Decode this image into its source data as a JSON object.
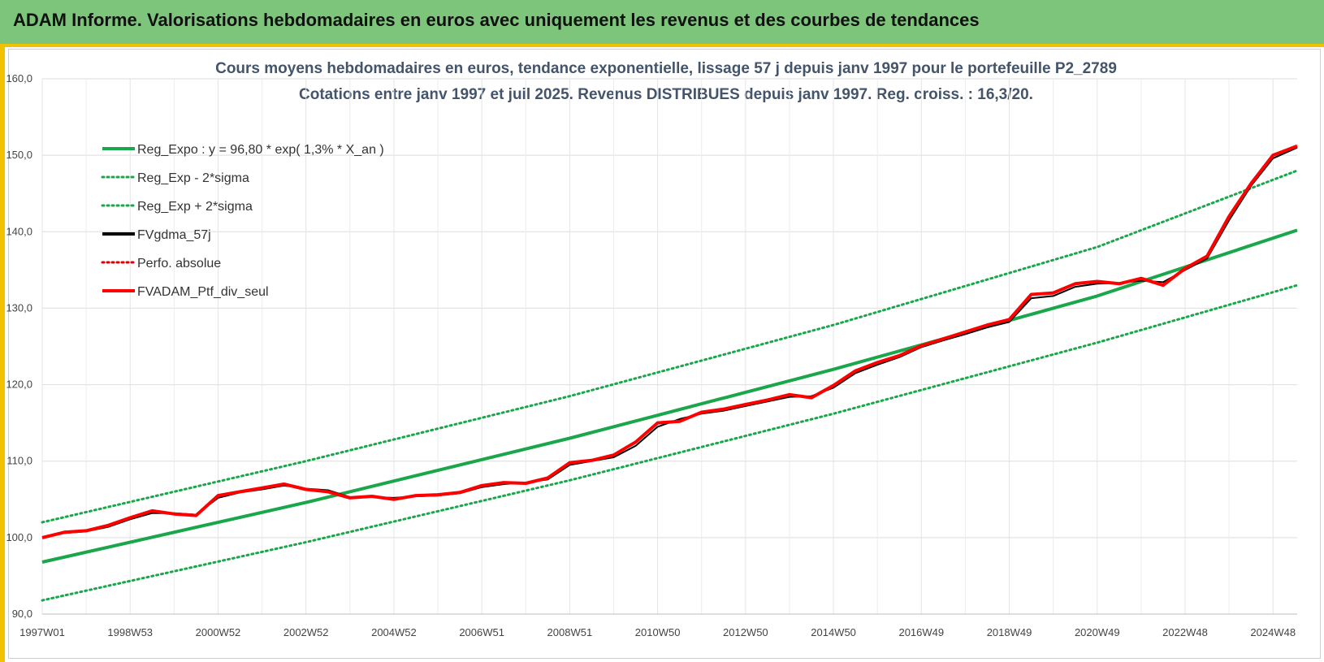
{
  "header": {
    "title": "ADAM Informe. Valorisations hebdomadaires en euros avec uniquement les revenus et des courbes de tendances"
  },
  "chart_data": {
    "type": "line",
    "title": "Cours moyens hebdomadaires  en euros, tendance exponentielle, lissage 57 j depuis janv 1997 pour le portefeuille P2_2789",
    "subtitle": "Cotations  entre janv 1997 et juil 2025. Revenus DISTRIBUES depuis janv 1997. Reg. croiss. : 16,3/20.",
    "ylim": [
      90,
      160
    ],
    "xlim": [
      1997.0,
      2025.55
    ],
    "y_ticks": [
      "90,0",
      "100,0",
      "110,0",
      "120,0",
      "130,0",
      "140,0",
      "150,0",
      "160,0"
    ],
    "x_ticks": [
      {
        "label": "1997W01",
        "x": 1997.0
      },
      {
        "label": "1998W53",
        "x": 1999.0
      },
      {
        "label": "2000W52",
        "x": 2001.0
      },
      {
        "label": "2002W52",
        "x": 2003.0
      },
      {
        "label": "2004W52",
        "x": 2005.0
      },
      {
        "label": "2006W51",
        "x": 2007.0
      },
      {
        "label": "2008W51",
        "x": 2009.0
      },
      {
        "label": "2010W50",
        "x": 2011.0
      },
      {
        "label": "2012W50",
        "x": 2013.0
      },
      {
        "label": "2014W50",
        "x": 2015.0
      },
      {
        "label": "2016W49",
        "x": 2017.0
      },
      {
        "label": "2018W49",
        "x": 2019.0
      },
      {
        "label": "2020W49",
        "x": 2021.0
      },
      {
        "label": "2022W48",
        "x": 2023.0
      },
      {
        "label": "2024W48",
        "x": 2025.0
      }
    ],
    "grid": true,
    "legend_position": "top-left",
    "series": [
      {
        "name": "Reg_Expo : y = 96,80 * exp( 1,3% *  X_an )",
        "color": "#1aa64a",
        "style": "solid",
        "x": [
          1997.0,
          2003.0,
          2009.0,
          2015.0,
          2021.0,
          2025.55
        ],
        "y": [
          96.8,
          104.6,
          113.0,
          122.0,
          131.6,
          140.2
        ]
      },
      {
        "name": "Reg_Exp - 2*sigma",
        "color": "#1aa64a",
        "style": "dotted",
        "x": [
          1997.0,
          2003.0,
          2009.0,
          2015.0,
          2021.0,
          2025.55
        ],
        "y": [
          91.8,
          99.4,
          107.5,
          116.2,
          125.5,
          133.0
        ]
      },
      {
        "name": "Reg_Exp + 2*sigma",
        "color": "#1aa64a",
        "style": "dotted",
        "x": [
          1997.0,
          2003.0,
          2009.0,
          2015.0,
          2021.0,
          2025.55
        ],
        "y": [
          102.0,
          110.0,
          118.5,
          127.8,
          138.0,
          148.0
        ]
      },
      {
        "name": "FVgdma_57j",
        "color": "#000000",
        "style": "solid",
        "x": [
          1997.0,
          1997.5,
          1998.0,
          1998.5,
          1999.0,
          1999.5,
          2000.0,
          2000.5,
          2001.0,
          2001.5,
          2002.0,
          2002.5,
          2003.0,
          2003.5,
          2004.0,
          2004.5,
          2005.0,
          2005.5,
          2006.0,
          2006.5,
          2007.0,
          2007.5,
          2008.0,
          2008.5,
          2009.0,
          2009.5,
          2010.0,
          2010.5,
          2011.0,
          2011.5,
          2012.0,
          2012.5,
          2013.0,
          2013.5,
          2014.0,
          2014.5,
          2015.0,
          2015.5,
          2016.0,
          2016.5,
          2017.0,
          2017.5,
          2018.0,
          2018.5,
          2019.0,
          2019.5,
          2020.0,
          2020.5,
          2021.0,
          2021.5,
          2022.0,
          2022.5,
          2023.0,
          2023.5,
          2024.0,
          2024.5,
          2025.0,
          2025.55
        ],
        "y": [
          100.0,
          100.6,
          100.8,
          101.4,
          102.4,
          103.2,
          103.2,
          103.0,
          105.2,
          105.9,
          106.3,
          106.8,
          106.4,
          106.2,
          105.3,
          105.3,
          105.2,
          105.4,
          105.5,
          105.8,
          106.6,
          107.0,
          107.2,
          107.6,
          109.5,
          110.0,
          110.5,
          112.0,
          114.5,
          115.5,
          116.2,
          116.6,
          117.2,
          117.8,
          118.4,
          118.5,
          119.6,
          121.5,
          122.6,
          123.6,
          124.9,
          125.8,
          126.6,
          127.5,
          128.2,
          131.3,
          131.6,
          132.8,
          133.2,
          133.3,
          133.6,
          133.4,
          135.0,
          136.5,
          141.5,
          146.0,
          149.6,
          151.0
        ]
      },
      {
        "name": "Perfo. absolue",
        "color": "#e00000",
        "style": "dotted",
        "x": [],
        "y": []
      },
      {
        "name": "FVADAM_Ptf_div_seul",
        "color": "#ff0000",
        "style": "solid",
        "x": [
          1997.0,
          1997.5,
          1998.0,
          1998.5,
          1999.0,
          1999.5,
          2000.0,
          2000.5,
          2001.0,
          2001.5,
          2002.0,
          2002.5,
          2003.0,
          2003.5,
          2004.0,
          2004.5,
          2005.0,
          2005.5,
          2006.0,
          2006.5,
          2007.0,
          2007.5,
          2008.0,
          2008.5,
          2009.0,
          2009.5,
          2010.0,
          2010.5,
          2011.0,
          2011.5,
          2012.0,
          2012.5,
          2013.0,
          2013.5,
          2014.0,
          2014.5,
          2015.0,
          2015.5,
          2016.0,
          2016.5,
          2017.0,
          2017.5,
          2018.0,
          2018.5,
          2019.0,
          2019.5,
          2020.0,
          2020.5,
          2021.0,
          2021.5,
          2022.0,
          2022.5,
          2023.0,
          2023.5,
          2024.0,
          2024.5,
          2025.0,
          2025.55
        ],
        "y": [
          100.0,
          100.7,
          100.9,
          101.6,
          102.6,
          103.5,
          103.1,
          102.9,
          105.5,
          106.0,
          106.5,
          107.0,
          106.3,
          106.0,
          105.2,
          105.4,
          105.0,
          105.5,
          105.6,
          105.9,
          106.8,
          107.2,
          107.1,
          107.8,
          109.8,
          110.1,
          110.8,
          112.5,
          115.0,
          115.2,
          116.4,
          116.8,
          117.4,
          118.0,
          118.7,
          118.3,
          119.9,
          121.8,
          122.9,
          123.8,
          125.1,
          126.0,
          126.9,
          127.8,
          128.5,
          131.8,
          132.0,
          133.2,
          133.5,
          133.2,
          133.9,
          133.0,
          135.2,
          136.8,
          142.0,
          146.3,
          150.0,
          151.2
        ]
      }
    ]
  }
}
